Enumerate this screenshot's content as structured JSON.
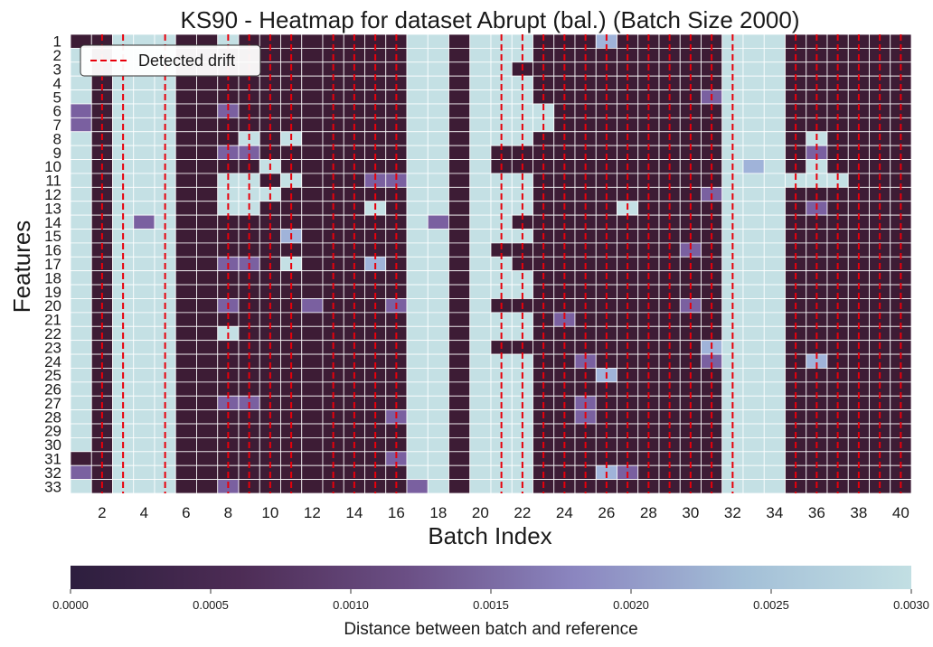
{
  "chart_data": {
    "type": "heatmap",
    "title": "KS90 - Heatmap for dataset Abrupt (bal.) (Batch Size 2000)",
    "xlabel": "Batch Index",
    "ylabel": "Features",
    "x_categories": [
      1,
      2,
      3,
      4,
      5,
      6,
      7,
      8,
      9,
      10,
      11,
      12,
      13,
      14,
      15,
      16,
      17,
      18,
      19,
      20,
      21,
      22,
      23,
      24,
      25,
      26,
      27,
      28,
      29,
      30,
      31,
      32,
      33,
      34,
      35,
      36,
      37,
      38,
      39,
      40
    ],
    "x_tick_labels_shown": [
      "2",
      "4",
      "6",
      "8",
      "10",
      "12",
      "14",
      "16",
      "18",
      "20",
      "22",
      "24",
      "26",
      "28",
      "30",
      "32",
      "34",
      "36",
      "38",
      "40"
    ],
    "y_categories": [
      "1",
      "2",
      "3",
      "4",
      "5",
      "6",
      "7",
      "8",
      "9",
      "10",
      "11",
      "12",
      "13",
      "14",
      "15",
      "16",
      "17",
      "18",
      "19",
      "20",
      "21",
      "22",
      "23",
      "24",
      "25",
      "26",
      "27",
      "28",
      "29",
      "30",
      "31",
      "32",
      "33"
    ],
    "drift_batches": [
      2,
      3,
      5,
      8,
      9,
      10,
      11,
      13,
      14,
      15,
      16,
      21,
      22,
      23,
      24,
      25,
      26,
      27,
      28,
      29,
      30,
      31,
      32,
      35,
      36,
      37,
      38,
      39,
      40
    ],
    "legend": {
      "label": "Detected drift",
      "placement": "top-left",
      "color": "#e8000b"
    },
    "colorbar": {
      "label": "Distance between batch and reference",
      "range": [
        0.0,
        0.003
      ],
      "ticks": [
        "0.0000",
        "0.0005",
        "0.0010",
        "0.0015",
        "0.0020",
        "0.0025",
        "0.0030"
      ],
      "stops": [
        "#2d1e3e",
        "#4d2c55",
        "#6b4f85",
        "#8b86c0",
        "#a3bfd7",
        "#c2dfe3"
      ],
      "orientation": "horizontal"
    },
    "value_encoding": "each row string lists batches 1-40; '0' = 0.0000, '1' = ~0.0010, '2' = ~0.0018, '3' = 0.0030",
    "rows": [
      "0033300300000000330333000200000333000000",
      "3033300000000000330333000000000333000000",
      "3033300000000000330330000000000333000000",
      "3033300000000000330333000000000333000000",
      "3033300000000000330333000000001333000000",
      "1033300100000000330333300000000333000000",
      "1033300000000000330333300000000333000000",
      "3033300030300000330333000000000333030000",
      "3033300110000000330300000000000333010000",
      "3033300003000000330300000000000323030000",
      "3033300330300011330333000000000333333000",
      "3033300333000000330333000000001333000000",
      "3033300330000030330333000030000333010000",
      "3031300000000000310330000000000333000000",
      "3033300000200000330333000000000333000000",
      "3033300000000000330300000000010333000000",
      "3033300110300020330330000000000333000000",
      "3033300000000000330333000000000333000000",
      "3033300000000000330333000000000333000000",
      "3033300100010001330300000000010333000000",
      "3033300000000000330333010000000333000000",
      "3033300300000000330333000000000333000000",
      "3033300000000000330300000000002333000000",
      "3033300000000000330333001000001333020000",
      "3033300000000000330333000200000333000000",
      "3033300000000000330333000000000333000000",
      "3033300110000000330333001000000333000000",
      "3033300000000001330333001000000333000000",
      "3033300000000000330333000000000333000000",
      "3033300000000000330333000000000333000000",
      "0033300000000001330333000000000333000000",
      "1033300000000000330333000210000333000000",
      "3033300100000000130333000000000333000000"
    ]
  }
}
